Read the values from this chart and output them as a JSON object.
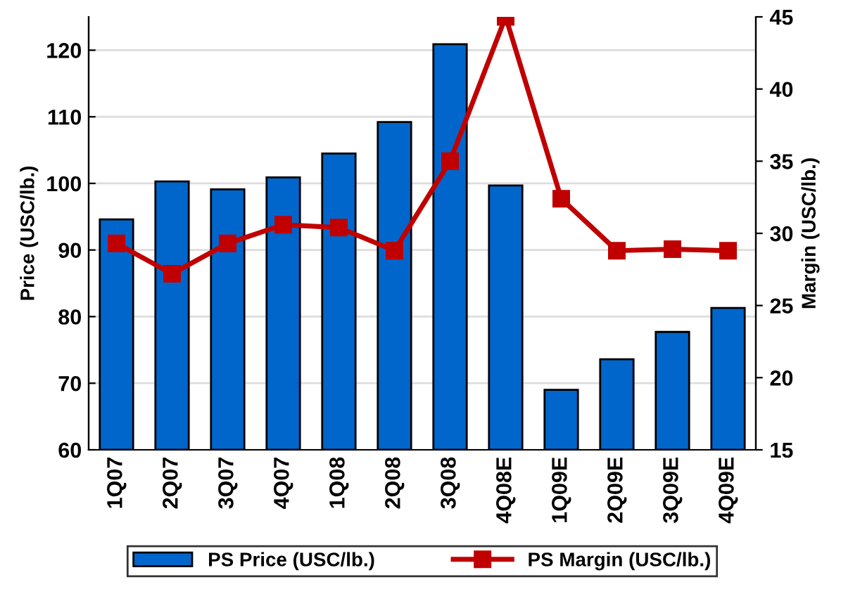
{
  "chart_data": {
    "type": "bar",
    "ylabel": "Price (USC/lb.)",
    "y2label": "Margin (USC/lb.)",
    "categories": [
      "1Q07",
      "2Q07",
      "3Q07",
      "4Q07",
      "1Q08",
      "2Q08",
      "3Q08",
      "4Q08E",
      "1Q09E",
      "2Q09E",
      "3Q09E",
      "4Q09E"
    ],
    "series": [
      {
        "name": "PS Price (USC/lb.)",
        "color": "#0066cc",
        "values": [
          94.6,
          100.3,
          99.1,
          100.9,
          104.5,
          109.2,
          120.9,
          99.7,
          69.0,
          73.6,
          77.7,
          81.3
        ]
      },
      {
        "name": "PS Margin (USC/lb.)",
        "type": "line",
        "axis": "y2",
        "color": "#c00000",
        "marker": "square",
        "values": [
          29.3,
          27.2,
          29.3,
          30.6,
          30.4,
          28.8,
          35.0,
          45.0,
          32.4,
          28.8,
          28.9,
          28.8
        ]
      }
    ],
    "ylim": [
      60,
      125
    ],
    "yticks": [
      60,
      70,
      80,
      90,
      100,
      110,
      120
    ],
    "y2lim": [
      15,
      45
    ],
    "y2ticks": [
      15,
      20,
      25,
      30,
      35,
      40,
      45
    ],
    "grid": "y",
    "legend": "bottom"
  }
}
